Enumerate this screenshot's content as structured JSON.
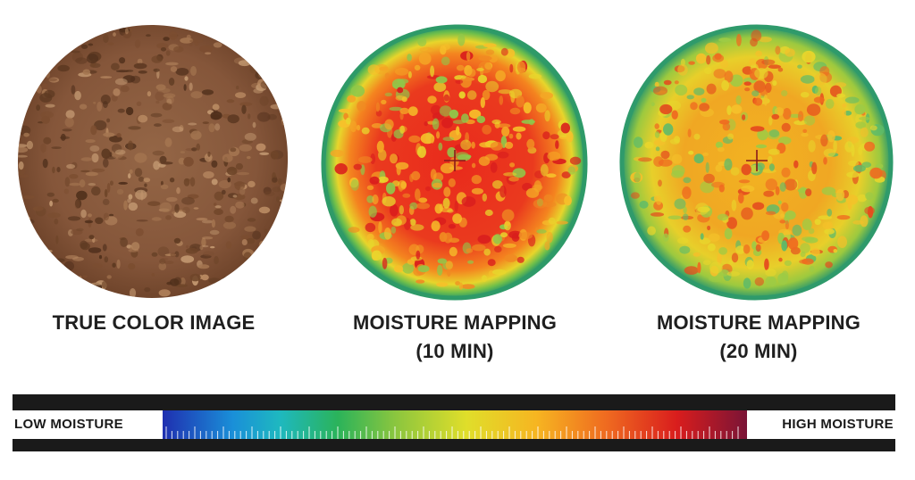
{
  "captions": {
    "true_color": "TRUE COLOR IMAGE",
    "moisture_10_line1": "MOISTURE MAPPING",
    "moisture_10_line2": "(10 MIN)",
    "moisture_20_line1": "MOISTURE MAPPING",
    "moisture_20_line2": "(20 MIN)"
  },
  "scale": {
    "low_label": "LOW MOISTURE",
    "high_label": "HIGH MOISTURE",
    "gradient_colors": [
      "#1f2fb0",
      "#1a8fd8",
      "#1eb8c0",
      "#2bb35a",
      "#8cc63e",
      "#e0de2a",
      "#f6b521",
      "#ef6a20",
      "#d91d1d",
      "#7a1436"
    ]
  },
  "colors": {
    "cookie_base": "#8a5a3b",
    "cookie_dark": "#5e3a22",
    "cookie_light": "#c49a72",
    "map_edge": "#3aa66a",
    "crosshair": "#8a1a1a"
  }
}
